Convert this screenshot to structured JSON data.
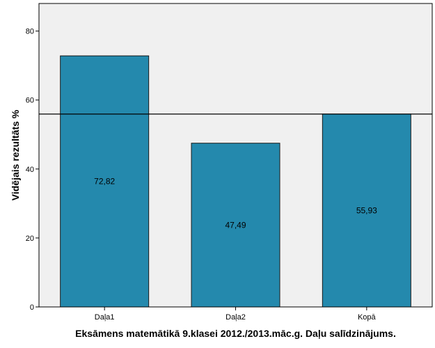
{
  "chart_data": {
    "type": "bar",
    "categories": [
      "Daļa1",
      "Daļa2",
      "Kopā"
    ],
    "values": [
      72.82,
      47.49,
      55.93
    ],
    "value_labels": [
      "72,82",
      "47,49",
      "55,93"
    ],
    "title": "",
    "xlabel": "Eksāmens matemātikā 9.klasei 2012./2013.māc.g. Daļu salīdzinājums.",
    "ylabel": "Vidējais rezultāts %",
    "ylim": [
      0,
      88
    ],
    "yticks": [
      0,
      20,
      40,
      60,
      80
    ],
    "reference_line": 55.93,
    "grid": false,
    "colors": {
      "bar": "#2489ad",
      "bar_stroke": "#1a1a1a",
      "plot_background": "#f0f0f0",
      "reference_line": "#000000"
    }
  }
}
